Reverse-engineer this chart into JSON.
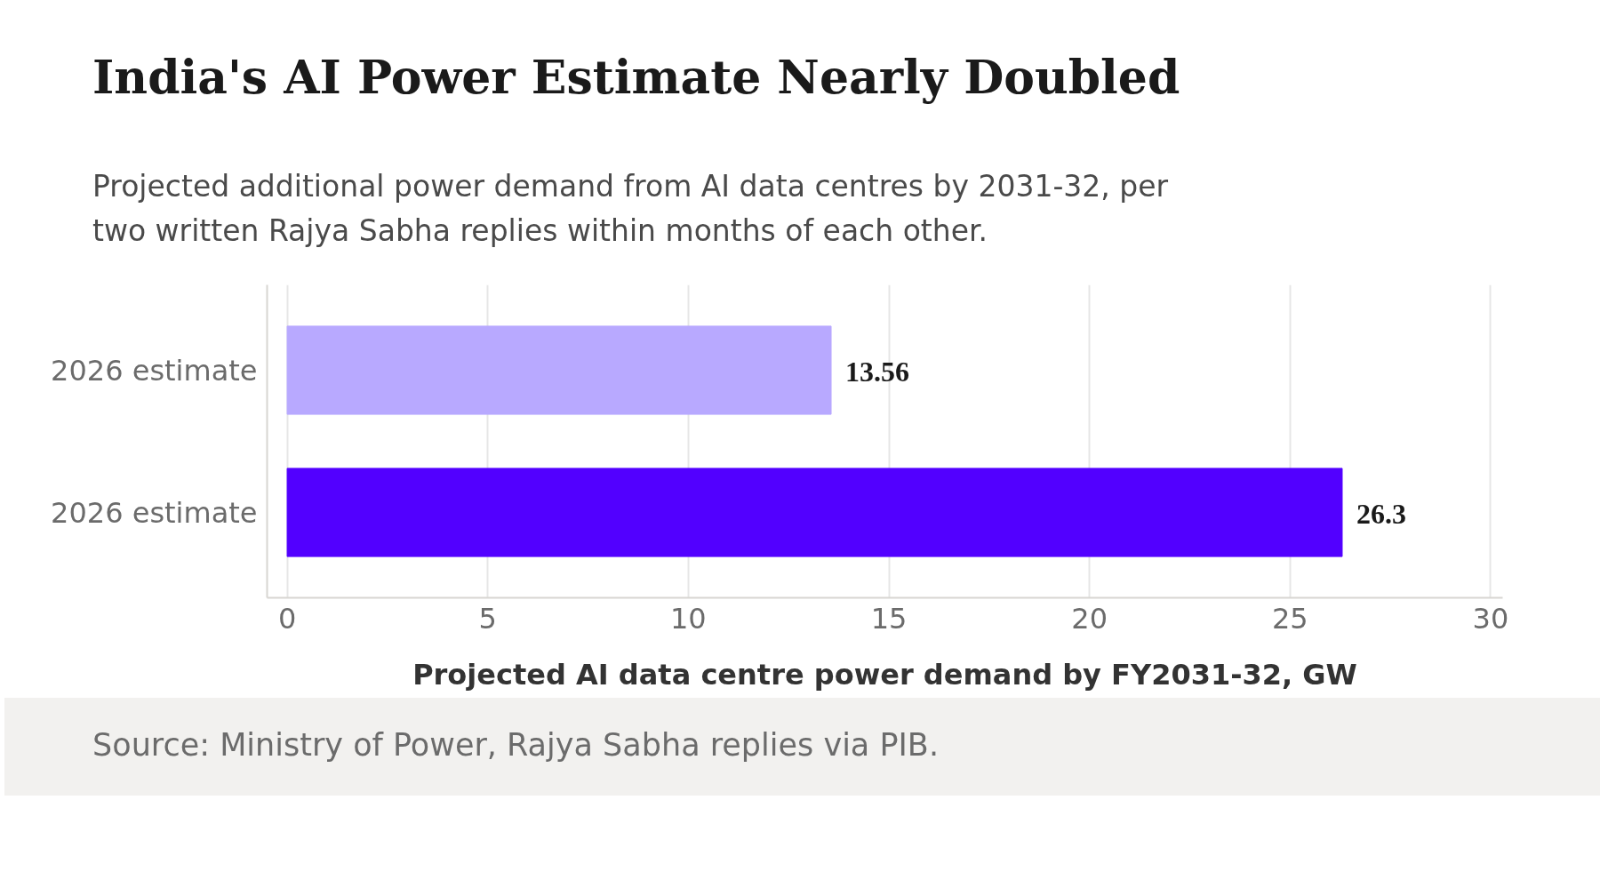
{
  "chart_data": {
    "type": "bar",
    "orientation": "horizontal",
    "title": "India's AI Power Estimate Nearly Doubled",
    "subtitle": "Projected additional power demand from AI data centres by 2031-32, per two written Rajya Sabha replies within months of each other.",
    "categories": [
      "2026 estimate",
      "2026 estimate"
    ],
    "values": [
      13.56,
      26.3
    ],
    "colors": [
      "#b8a9ff",
      "#5200ff"
    ],
    "xlabel": "Projected AI data centre power demand by FY2031-32, GW",
    "xlim": [
      -0.5,
      30.3
    ],
    "xticks": [
      0,
      5,
      10,
      15,
      20,
      25,
      30
    ],
    "grid": "x",
    "data_labels": true,
    "annotations": [
      "Source: Ministry of Power, Rajya Sabha replies via PIB."
    ]
  }
}
